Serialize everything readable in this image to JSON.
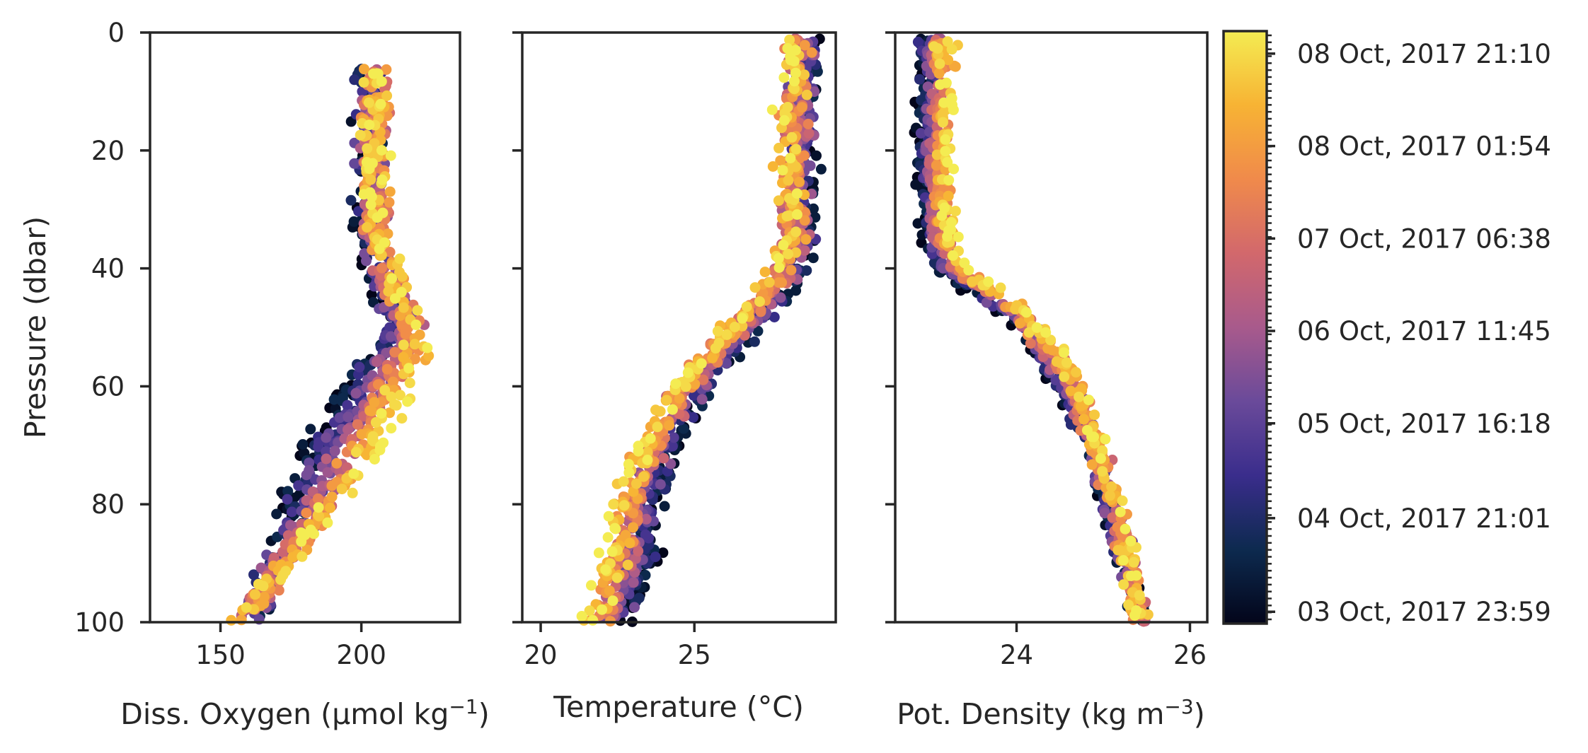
{
  "figure": {
    "colormap": [
      "#03051a",
      "#0d2a4f",
      "#3a2d8c",
      "#6a4a9a",
      "#a85a8c",
      "#d2686c",
      "#f08a4b",
      "#f7b334",
      "#f4ec52"
    ],
    "shared_y": {
      "label": "Pressure (dbar)",
      "range": [
        100,
        0
      ],
      "ticks": [
        0,
        20,
        40,
        60,
        80,
        100
      ]
    },
    "colorbar": {
      "labels": [
        "08 Oct, 2017 21:10",
        "08 Oct, 2017 01:54",
        "07 Oct, 2017 06:38",
        "06 Oct, 2017 11:45",
        "05 Oct, 2017 16:18",
        "04 Oct, 2017 21:01",
        "03 Oct, 2017 23:59"
      ]
    }
  },
  "chart_data": [
    {
      "type": "scatter",
      "xlabel_main": "Diss. Oxygen (μmol kg",
      "xlabel_sup": "−1",
      "xlabel_tail": ")",
      "ylabel": "Pressure (dbar)",
      "xlim": [
        125,
        235
      ],
      "ylim": [
        100,
        0
      ],
      "xticks": [
        150,
        200
      ],
      "yticks": [
        0,
        20,
        40,
        60,
        80,
        100
      ],
      "profile": {
        "p": [
          6,
          10,
          20,
          30,
          35,
          40,
          45,
          50,
          55,
          60,
          65,
          70,
          75,
          80,
          85,
          90,
          95,
          100
        ],
        "early": [
          202,
          202,
          202,
          202,
          202,
          203,
          208,
          212,
          205,
          195,
          188,
          182,
          178,
          175,
          172,
          168,
          165,
          162
        ],
        "late": [
          206,
          206,
          205,
          205,
          207,
          210,
          214,
          220,
          219,
          214,
          210,
          205,
          198,
          190,
          183,
          174,
          165,
          155
        ]
      }
    },
    {
      "type": "scatter",
      "xlabel_main": "Temperature (°C)",
      "xlabel_sup": "",
      "xlabel_tail": "",
      "xlim": [
        19.4,
        29.6
      ],
      "ylim": [
        100,
        0
      ],
      "xticks": [
        20,
        25
      ],
      "yticks": [
        0,
        20,
        40,
        60,
        80,
        100
      ],
      "profile": {
        "p": [
          1,
          6,
          10,
          20,
          30,
          38,
          42,
          46,
          50,
          55,
          60,
          65,
          70,
          75,
          80,
          85,
          90,
          95,
          100
        ],
        "early": [
          28.8,
          28.8,
          28.8,
          28.7,
          28.7,
          28.6,
          28.2,
          27.6,
          27.0,
          26.2,
          25.4,
          24.8,
          24.4,
          24.1,
          23.9,
          23.7,
          23.5,
          23.2,
          22.8
        ],
        "late": [
          28.2,
          28.1,
          28.1,
          28.0,
          28.0,
          27.9,
          27.5,
          26.9,
          26.1,
          25.3,
          24.5,
          23.8,
          23.3,
          22.9,
          22.6,
          22.4,
          22.2,
          21.9,
          21.6
        ]
      }
    },
    {
      "type": "scatter",
      "xlabel_main": "Pot. Density (kg m",
      "xlabel_sup": "−3",
      "xlabel_tail": ")",
      "xlim": [
        22.6,
        26.2
      ],
      "ylim": [
        100,
        0
      ],
      "xticks": [
        24,
        26
      ],
      "yticks": [
        0,
        20,
        40,
        60,
        80,
        100
      ],
      "profile": {
        "p": [
          1,
          6,
          10,
          20,
          30,
          36,
          40,
          44,
          48,
          52,
          56,
          60,
          65,
          70,
          75,
          80,
          85,
          90,
          95,
          100
        ],
        "early": [
          22.9,
          22.9,
          22.9,
          22.9,
          22.95,
          23.0,
          23.1,
          23.5,
          23.9,
          24.1,
          24.3,
          24.5,
          24.7,
          24.85,
          24.95,
          25.05,
          25.15,
          25.25,
          25.35,
          25.45
        ],
        "late": [
          23.2,
          23.2,
          23.2,
          23.2,
          23.2,
          23.25,
          23.4,
          23.8,
          24.15,
          24.35,
          24.55,
          24.7,
          24.85,
          24.95,
          25.05,
          25.15,
          25.25,
          25.3,
          25.38,
          25.42
        ]
      }
    }
  ]
}
